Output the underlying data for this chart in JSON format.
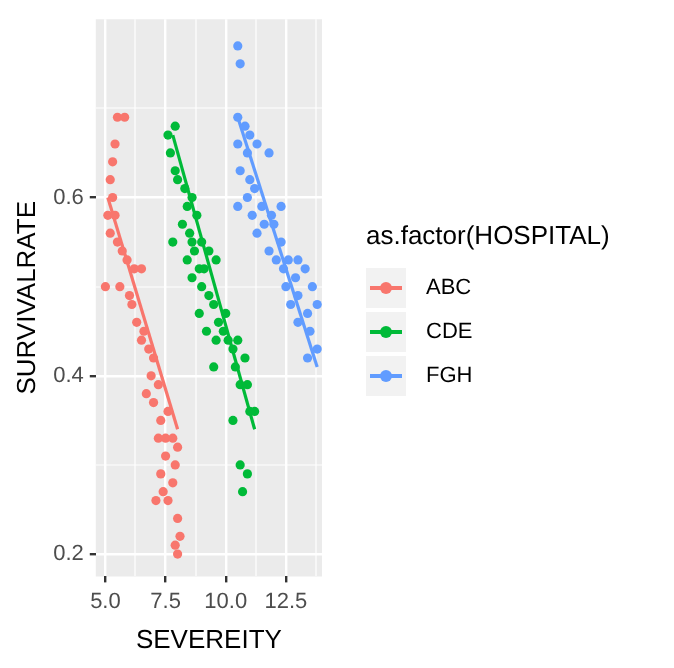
{
  "chart_data": {
    "type": "scatter",
    "xlabel": "SEVEREITY",
    "ylabel": "SURVIVALRATE",
    "legend_title": "as.factor(HOSPITAL)",
    "legend": "right",
    "grid": true,
    "marker": "circle",
    "xlim": [
      4.6,
      14.0
    ],
    "ylim": [
      0.175,
      0.8
    ],
    "xticks": [
      {
        "value": 5,
        "label": "5.0"
      },
      {
        "value": 6.25,
        "label": null
      },
      7.5,
      {
        "value": 8.75,
        "label": null
      },
      {
        "value": 10,
        "label": "10.0"
      },
      {
        "value": 11.25,
        "label": null
      },
      12.5,
      {
        "value": 13.75,
        "label": null
      }
    ],
    "yticks": [
      0.2,
      {
        "value": 0.3,
        "label": null
      },
      0.4,
      {
        "value": 0.5,
        "label": null
      },
      0.6,
      {
        "value": 0.7,
        "label": null
      }
    ],
    "series": [
      {
        "name": "ABC",
        "color": "#f8766d",
        "x": [
          5.5,
          5.8,
          5.4,
          5.3,
          5.2,
          5.3,
          5.1,
          5.4,
          5.2,
          5.5,
          5.7,
          5.9,
          6.2,
          5.0,
          5.6,
          6.0,
          6.1,
          6.5,
          6.3,
          6.6,
          6.8,
          6.5,
          7.0,
          6.9,
          6.7,
          7.2,
          7.0,
          7.3,
          7.6,
          7.2,
          7.5,
          7.8,
          8.0,
          7.5,
          7.9,
          7.3,
          7.8,
          7.4,
          7.6,
          7.1,
          8.0,
          8.1,
          7.9,
          8.0
        ],
        "values": [
          0.69,
          0.69,
          0.66,
          0.64,
          0.62,
          0.6,
          0.58,
          0.58,
          0.56,
          0.55,
          0.54,
          0.53,
          0.52,
          0.5,
          0.5,
          0.49,
          0.48,
          0.52,
          0.46,
          0.45,
          0.43,
          0.44,
          0.42,
          0.4,
          0.38,
          0.39,
          0.37,
          0.35,
          0.36,
          0.33,
          0.33,
          0.33,
          0.32,
          0.31,
          0.3,
          0.29,
          0.28,
          0.27,
          0.26,
          0.26,
          0.24,
          0.22,
          0.21,
          0.2
        ]
      },
      {
        "name": "CDE",
        "color": "#00ba38",
        "x": [
          7.9,
          7.6,
          7.7,
          7.9,
          8.0,
          8.3,
          8.6,
          8.4,
          8.8,
          8.2,
          8.5,
          7.8,
          8.6,
          9.0,
          8.7,
          9.3,
          8.4,
          8.9,
          9.1,
          8.6,
          9.6,
          9.0,
          9.3,
          9.5,
          8.9,
          9.7,
          10.0,
          9.2,
          9.9,
          10.1,
          9.6,
          10.3,
          10.5,
          9.5,
          10.4,
          10.8,
          10.6,
          10.9,
          11.0,
          11.2,
          10.3,
          10.6,
          10.9,
          10.7
        ],
        "values": [
          0.68,
          0.67,
          0.65,
          0.63,
          0.62,
          0.61,
          0.6,
          0.59,
          0.58,
          0.57,
          0.56,
          0.55,
          0.55,
          0.55,
          0.54,
          0.54,
          0.53,
          0.52,
          0.52,
          0.51,
          0.53,
          0.5,
          0.49,
          0.48,
          0.47,
          0.46,
          0.47,
          0.45,
          0.45,
          0.44,
          0.44,
          0.43,
          0.44,
          0.41,
          0.41,
          0.42,
          0.39,
          0.39,
          0.36,
          0.36,
          0.35,
          0.3,
          0.29,
          0.27
        ]
      },
      {
        "name": "FGH",
        "color": "#619cff",
        "x": [
          10.5,
          10.6,
          10.5,
          10.8,
          11.0,
          10.5,
          10.9,
          11.3,
          11.8,
          10.6,
          11.0,
          11.2,
          10.9,
          10.5,
          11.5,
          11.1,
          11.9,
          12.3,
          11.6,
          12.0,
          11.3,
          12.3,
          11.8,
          12.6,
          12.1,
          13.0,
          12.4,
          12.9,
          13.3,
          12.5,
          13.0,
          13.6,
          12.7,
          13.4,
          13.8,
          13.0,
          13.5,
          13.8,
          13.4
        ],
        "values": [
          0.77,
          0.75,
          0.69,
          0.68,
          0.67,
          0.66,
          0.65,
          0.66,
          0.65,
          0.63,
          0.62,
          0.61,
          0.6,
          0.59,
          0.59,
          0.58,
          0.58,
          0.59,
          0.57,
          0.57,
          0.56,
          0.55,
          0.54,
          0.53,
          0.53,
          0.53,
          0.52,
          0.51,
          0.52,
          0.5,
          0.49,
          0.5,
          0.48,
          0.47,
          0.48,
          0.46,
          0.45,
          0.43,
          0.42
        ]
      },
      {
        "type": "line",
        "marker": "none",
        "color": "#f8766d",
        "x": [
          5.1,
          8.0
        ],
        "values": [
          0.6,
          0.34
        ]
      },
      {
        "type": "line",
        "marker": "none",
        "color": "#00ba38",
        "x": [
          7.8,
          11.2
        ],
        "values": [
          0.67,
          0.34
        ]
      },
      {
        "type": "line",
        "marker": "none",
        "color": "#619cff",
        "x": [
          10.5,
          13.8
        ],
        "values": [
          0.69,
          0.41
        ]
      }
    ]
  }
}
